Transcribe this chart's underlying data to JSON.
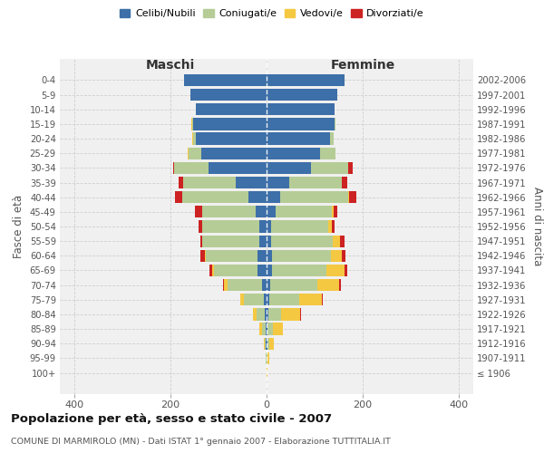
{
  "age_groups": [
    "100+",
    "95-99",
    "90-94",
    "85-89",
    "80-84",
    "75-79",
    "70-74",
    "65-69",
    "60-64",
    "55-59",
    "50-54",
    "45-49",
    "40-44",
    "35-39",
    "30-34",
    "25-29",
    "20-24",
    "15-19",
    "10-14",
    "5-9",
    "0-4"
  ],
  "birth_years": [
    "≤ 1906",
    "1907-1911",
    "1912-1916",
    "1917-1921",
    "1922-1926",
    "1927-1931",
    "1932-1936",
    "1937-1941",
    "1942-1946",
    "1947-1951",
    "1952-1956",
    "1957-1961",
    "1962-1966",
    "1967-1971",
    "1972-1976",
    "1977-1981",
    "1982-1986",
    "1987-1991",
    "1992-1996",
    "1997-2001",
    "2002-2006"
  ],
  "colors": {
    "celibi": "#3d6fa8",
    "coniugati": "#b5cc96",
    "vedovi": "#f5c842",
    "divorziati": "#cc2222"
  },
  "males": {
    "celibi": [
      0,
      0,
      1,
      2,
      3,
      5,
      10,
      18,
      18,
      15,
      15,
      22,
      38,
      65,
      120,
      135,
      148,
      152,
      148,
      158,
      172
    ],
    "coniugati": [
      0,
      1,
      3,
      8,
      18,
      42,
      72,
      92,
      108,
      118,
      118,
      112,
      138,
      108,
      72,
      28,
      5,
      2,
      0,
      0,
      0
    ],
    "vedovi": [
      0,
      1,
      2,
      5,
      8,
      8,
      6,
      4,
      3,
      0,
      0,
      0,
      0,
      0,
      0,
      2,
      2,
      2,
      0,
      0,
      0
    ],
    "divorziati": [
      0,
      0,
      0,
      0,
      0,
      0,
      2,
      5,
      8,
      5,
      8,
      15,
      15,
      10,
      3,
      0,
      0,
      0,
      0,
      0,
      0
    ]
  },
  "females": {
    "celibi": [
      0,
      0,
      1,
      2,
      3,
      5,
      7,
      12,
      12,
      10,
      10,
      18,
      28,
      48,
      92,
      112,
      132,
      142,
      142,
      148,
      162
    ],
    "coniugati": [
      0,
      1,
      5,
      12,
      28,
      62,
      98,
      112,
      122,
      128,
      118,
      118,
      142,
      108,
      78,
      32,
      8,
      2,
      0,
      0,
      0
    ],
    "vedovi": [
      1,
      4,
      10,
      20,
      38,
      48,
      45,
      38,
      22,
      15,
      8,
      4,
      2,
      0,
      0,
      0,
      0,
      0,
      0,
      0,
      0
    ],
    "divorziati": [
      0,
      0,
      0,
      0,
      2,
      2,
      5,
      5,
      8,
      10,
      5,
      8,
      15,
      12,
      10,
      0,
      0,
      0,
      0,
      0,
      0
    ]
  },
  "xlim": [
    -430,
    430
  ],
  "xticks": [
    -400,
    -200,
    0,
    200,
    400
  ],
  "xtick_labels": [
    "400",
    "200",
    "0",
    "200",
    "400"
  ],
  "title": "Popolazione per età, sesso e stato civile - 2007",
  "subtitle": "COMUNE DI MARMIROLO (MN) - Dati ISTAT 1° gennaio 2007 - Elaborazione TUTTITALIA.IT",
  "ylabel_left": "Fasce di età",
  "ylabel_right": "Anni di nascita",
  "label_maschi": "Maschi",
  "label_femmine": "Femmine",
  "legend_labels": [
    "Celibi/Nubili",
    "Coniugati/e",
    "Vedovi/e",
    "Divorziati/e"
  ],
  "background_color": "#f0f0f0",
  "grid_color": "#cccccc"
}
